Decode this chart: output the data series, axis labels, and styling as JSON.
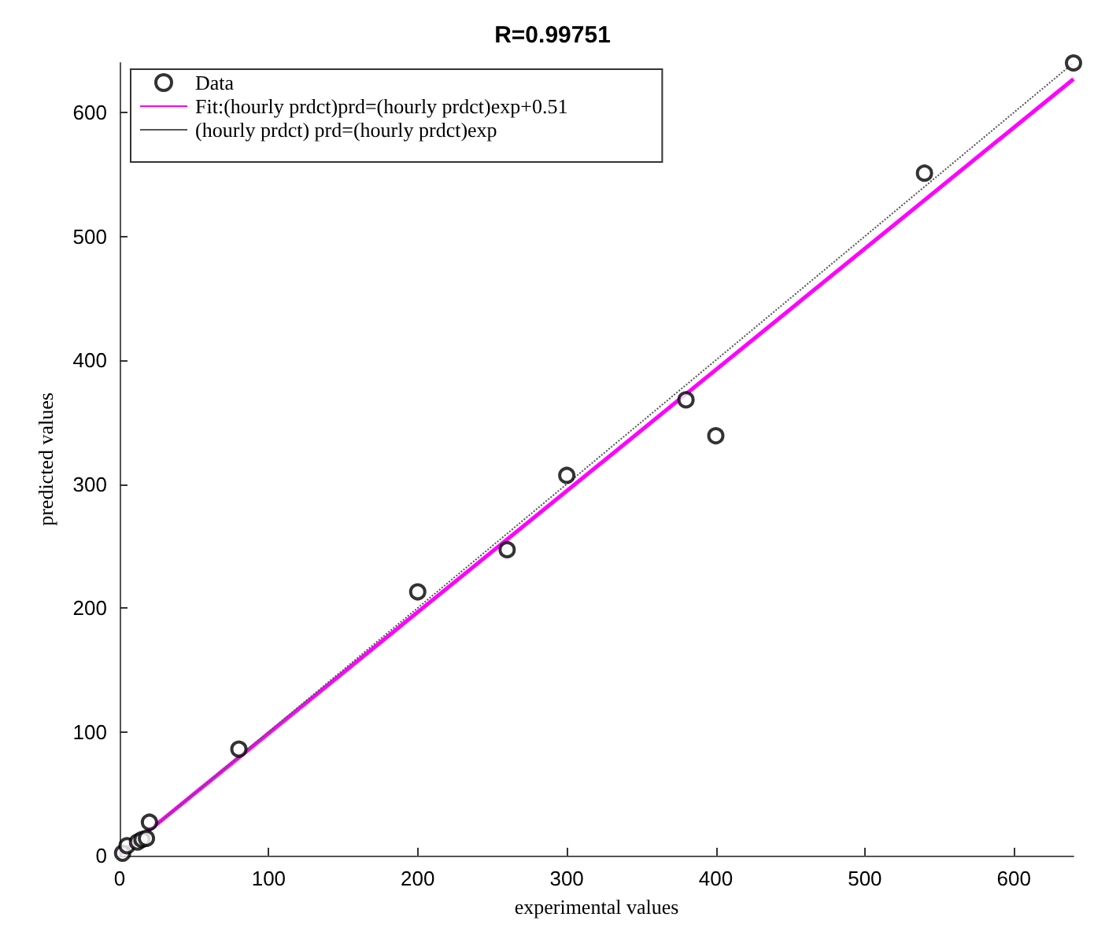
{
  "chart_data": {
    "type": "scatter",
    "title": "R=0.99751",
    "xlabel": "experimental values",
    "ylabel": "predicted values",
    "xlim": [
      0,
      640
    ],
    "ylim": [
      0,
      640
    ],
    "xticks": [
      0,
      100,
      200,
      300,
      400,
      500,
      600
    ],
    "yticks": [
      0,
      100,
      200,
      300,
      400,
      500,
      600
    ],
    "grid": false,
    "legend": "top left",
    "series": [
      {
        "name": "Data",
        "color": "#000000",
        "marker": "circle",
        "x": [
          2,
          5,
          12,
          15,
          18,
          20,
          80,
          200,
          260,
          300,
          380,
          400,
          540,
          640
        ],
        "values": [
          2,
          8,
          11,
          13,
          14,
          27,
          86,
          213,
          247,
          307,
          368,
          339,
          551,
          640
        ]
      },
      {
        "name": "Fit:(hourly prdct)prd=(hourly prdct)exp+0.51",
        "type": "line",
        "color": "#ff00ff",
        "marker": "none",
        "line_style": "solid",
        "x": [
          0,
          640
        ],
        "values": [
          1,
          627
        ]
      },
      {
        "name": "(hourly prdct) prd=(hourly prdct)exp",
        "type": "line",
        "color": "#555555",
        "marker": "none",
        "line_style": "dotted",
        "x": [
          0,
          640
        ],
        "values": [
          0,
          640
        ]
      }
    ]
  }
}
